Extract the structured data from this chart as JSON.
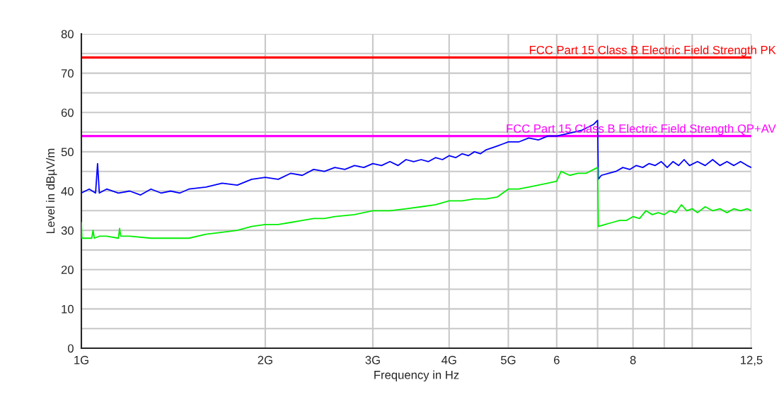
{
  "chart_data": {
    "type": "line",
    "xlabel": "Frequency in Hz",
    "ylabel": "Level in dBµV/m",
    "log": "x",
    "xlim": [
      1,
      12.5
    ],
    "xticks": [
      {
        "value": 1,
        "label": "1G"
      },
      {
        "value": 2,
        "label": "2G"
      },
      {
        "value": 3,
        "label": "3G"
      },
      {
        "value": 4,
        "label": "4G"
      },
      {
        "value": 5,
        "label": "5G"
      },
      6,
      {
        "value": 7,
        "label": null
      },
      8,
      {
        "value": 9,
        "label": null
      },
      {
        "value": 10,
        "label": null
      },
      {
        "value": 12.5,
        "label": "12,5"
      }
    ],
    "ylim": [
      0,
      80
    ],
    "yticks": [
      0,
      {
        "value": 5,
        "label": null
      },
      10,
      {
        "value": 15,
        "label": null
      },
      20,
      {
        "value": 25,
        "label": null
      },
      30,
      {
        "value": 35,
        "label": null
      },
      40,
      {
        "value": 45,
        "label": null
      },
      50,
      {
        "value": 55,
        "label": null
      },
      60,
      {
        "value": 65,
        "label": null
      },
      70,
      {
        "value": 75,
        "label": null
      },
      80
    ],
    "grid": true,
    "legend": false,
    "marker": "none",
    "line_style": "solid",
    "series": [
      {
        "color": "#0000ff",
        "x": [
          1.0,
          1.03,
          1.055,
          1.063,
          1.07,
          1.1,
          1.15,
          1.2,
          1.25,
          1.3,
          1.35,
          1.4,
          1.45,
          1.5,
          1.6,
          1.7,
          1.8,
          1.9,
          2.0,
          2.1,
          2.2,
          2.3,
          2.4,
          2.5,
          2.6,
          2.7,
          2.8,
          2.9,
          3.0,
          3.1,
          3.2,
          3.3,
          3.4,
          3.5,
          3.6,
          3.7,
          3.8,
          3.9,
          4.0,
          4.1,
          4.2,
          4.3,
          4.4,
          4.5,
          4.6,
          4.7,
          4.8,
          4.9,
          5.0,
          5.2,
          5.4,
          5.6,
          5.8,
          6.0,
          6.2,
          6.4,
          6.6,
          6.8,
          6.9,
          7.0,
          7.02,
          7.1,
          7.3,
          7.5,
          7.7,
          7.9,
          8.1,
          8.3,
          8.5,
          8.7,
          8.9,
          9.1,
          9.3,
          9.5,
          9.7,
          9.9,
          10.2,
          10.5,
          10.8,
          11.1,
          11.4,
          11.7,
          12.0,
          12.3,
          12.5
        ],
        "values": [
          39.5,
          40.5,
          39.5,
          47,
          39.5,
          40.5,
          39.5,
          40,
          39,
          40.5,
          39.5,
          40,
          39.5,
          40.5,
          41,
          42,
          41.5,
          43,
          43.5,
          43,
          44.5,
          44,
          45.5,
          45,
          46,
          45.5,
          46.5,
          46,
          47,
          46.5,
          47.5,
          46.5,
          48,
          47.5,
          48,
          47.5,
          48.5,
          48,
          49,
          48.5,
          49.5,
          49,
          50,
          49.5,
          50.5,
          51,
          51.5,
          52,
          52.5,
          52.5,
          53.5,
          53,
          54,
          54,
          54.5,
          55,
          55.5,
          56.5,
          57,
          58,
          43,
          44,
          44.5,
          45,
          46,
          45.5,
          46.5,
          46,
          47,
          46.5,
          47.5,
          46,
          47.5,
          46.5,
          48,
          46.5,
          47.5,
          46.5,
          48,
          46.5,
          47.5,
          46.5,
          47.5,
          46.5,
          46
        ]
      },
      {
        "color": "#00ee00",
        "x": [
          1.0,
          1.002,
          1.01,
          1.04,
          1.045,
          1.05,
          1.07,
          1.1,
          1.15,
          1.155,
          1.16,
          1.2,
          1.3,
          1.4,
          1.5,
          1.6,
          1.7,
          1.8,
          1.9,
          2.0,
          2.1,
          2.2,
          2.3,
          2.4,
          2.5,
          2.6,
          2.8,
          3.0,
          3.2,
          3.4,
          3.6,
          3.8,
          4.0,
          4.2,
          4.4,
          4.6,
          4.8,
          5.0,
          5.2,
          5.4,
          5.6,
          5.8,
          6.0,
          6.1,
          6.3,
          6.5,
          6.7,
          6.9,
          7.0,
          7.02,
          7.2,
          7.4,
          7.6,
          7.8,
          8.0,
          8.2,
          8.4,
          8.6,
          8.8,
          9.0,
          9.2,
          9.4,
          9.6,
          9.8,
          10.0,
          10.2,
          10.5,
          10.8,
          11.1,
          11.4,
          11.7,
          12.0,
          12.3,
          12.5
        ],
        "values": [
          32,
          28,
          28,
          28,
          30,
          28,
          28.5,
          28.5,
          28,
          30.5,
          28.5,
          28.5,
          28,
          28,
          28,
          29,
          29.5,
          30,
          31,
          31.5,
          31.5,
          32,
          32.5,
          33,
          33,
          33.5,
          34,
          35,
          35,
          35.5,
          36,
          36.5,
          37.5,
          37.5,
          38,
          38,
          38.5,
          40.5,
          40.5,
          41,
          41.5,
          42,
          42.5,
          45,
          44,
          44.5,
          44.5,
          45.5,
          46,
          31,
          31.5,
          32,
          32.5,
          32.5,
          33.5,
          33,
          35,
          34,
          34.5,
          34,
          35,
          34.5,
          36.5,
          35,
          35.5,
          34.5,
          36,
          35,
          35.5,
          34.5,
          35.5,
          35,
          35.5,
          35
        ]
      }
    ],
    "ref_lines": [
      {
        "axis": "y",
        "value": 74,
        "label": "FCC Part 15 Class B Electric Field Strength PK",
        "color": "#ff0000"
      },
      {
        "axis": "y",
        "value": 54,
        "label": "FCC Part 15 Class B Electric Field Strength QP+AV",
        "color": "#ff00ff"
      }
    ]
  }
}
